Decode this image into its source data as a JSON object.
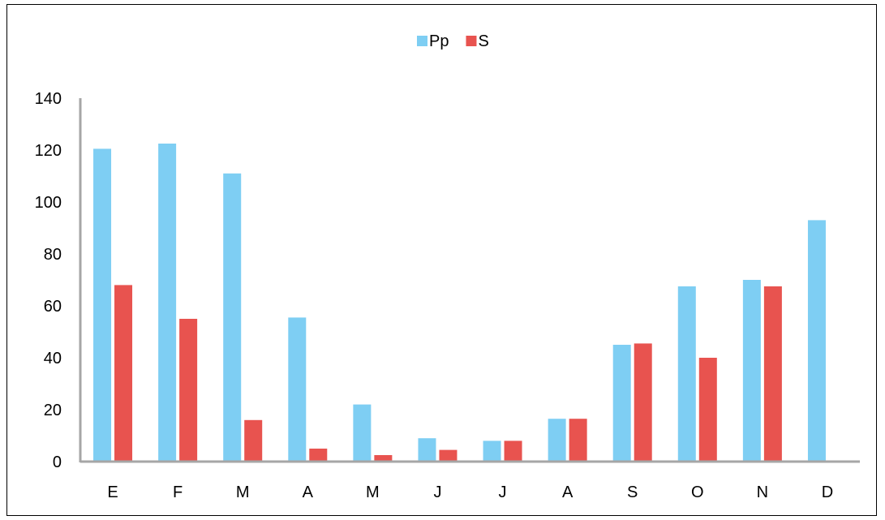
{
  "chart_data": {
    "type": "bar",
    "categories": [
      "E",
      "F",
      "M",
      "A",
      "M",
      "J",
      "J",
      "A",
      "S",
      "O",
      "N",
      "D"
    ],
    "series": [
      {
        "name": "Pp",
        "values": [
          120.5,
          122.5,
          111,
          55.5,
          22,
          9,
          8,
          16.5,
          45,
          67.5,
          70,
          93
        ],
        "color": "#7ecef3"
      },
      {
        "name": "S",
        "values": [
          68,
          55,
          16,
          5,
          2.5,
          4.5,
          8,
          16.5,
          45.5,
          40,
          67.5,
          null
        ],
        "color": "#e8534f"
      }
    ],
    "ylim": [
      0,
      140
    ],
    "yticks": [
      0,
      20,
      40,
      60,
      80,
      100,
      120,
      140
    ],
    "legend": "top-center",
    "grid": false,
    "title": "",
    "xlabel": "",
    "ylabel": ""
  }
}
